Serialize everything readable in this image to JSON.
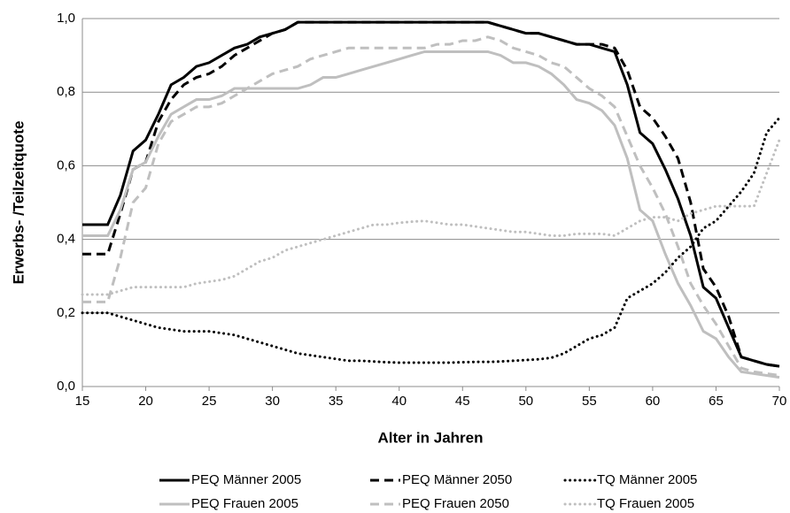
{
  "chart_data": {
    "type": "line",
    "y_label": "Erwerbs- /Teilzeitquote",
    "x_label": "Alter in Jahren",
    "x": [
      15,
      16,
      17,
      18,
      19,
      20,
      21,
      22,
      23,
      24,
      25,
      26,
      27,
      28,
      29,
      30,
      31,
      32,
      33,
      34,
      35,
      36,
      37,
      38,
      39,
      40,
      41,
      42,
      43,
      44,
      45,
      46,
      47,
      48,
      49,
      50,
      51,
      52,
      53,
      54,
      55,
      56,
      57,
      58,
      59,
      60,
      61,
      62,
      63,
      64,
      65,
      66,
      67,
      68,
      69,
      70
    ],
    "xlim": [
      15,
      70
    ],
    "xticks": [
      15,
      20,
      25,
      30,
      35,
      40,
      45,
      50,
      55,
      60,
      65,
      70
    ],
    "ylim": [
      0,
      1
    ],
    "yticks": [
      {
        "value": 0,
        "label": "0,0"
      },
      {
        "value": 0.2,
        "label": "0,2"
      },
      {
        "value": 0.4,
        "label": "0,4"
      },
      {
        "value": 0.6,
        "label": "0,6"
      },
      {
        "value": 0.8,
        "label": "0,8"
      },
      {
        "value": 1,
        "label": "1,0"
      }
    ],
    "grid": true,
    "legend": "bottom",
    "series": [
      {
        "name": "PEQ Männer 2005",
        "color": "#000000",
        "dash": "solid",
        "values": [
          0.44,
          0.44,
          0.44,
          0.52,
          0.64,
          0.67,
          0.74,
          0.82,
          0.84,
          0.87,
          0.88,
          0.9,
          0.92,
          0.93,
          0.95,
          0.96,
          0.97,
          0.99,
          0.99,
          0.99,
          0.99,
          0.99,
          0.99,
          0.99,
          0.99,
          0.99,
          0.99,
          0.99,
          0.99,
          0.99,
          0.99,
          0.99,
          0.99,
          0.98,
          0.97,
          0.96,
          0.96,
          0.95,
          0.94,
          0.93,
          0.93,
          0.92,
          0.91,
          0.82,
          0.69,
          0.66,
          0.59,
          0.51,
          0.41,
          0.27,
          0.24,
          0.16,
          0.08,
          0.07,
          0.06,
          0.055
        ]
      },
      {
        "name": "PEQ Männer 2050",
        "color": "#000000",
        "dash": "dash",
        "values": [
          0.36,
          0.36,
          0.36,
          0.47,
          0.59,
          0.61,
          0.72,
          0.78,
          0.82,
          0.84,
          0.85,
          0.87,
          0.9,
          0.92,
          0.94,
          0.96,
          0.97,
          0.99,
          0.99,
          0.99,
          0.99,
          0.99,
          0.99,
          0.99,
          0.99,
          0.99,
          0.99,
          0.99,
          0.99,
          0.99,
          0.99,
          0.99,
          0.99,
          0.98,
          0.97,
          0.96,
          0.96,
          0.95,
          0.94,
          0.93,
          0.93,
          0.93,
          0.92,
          0.86,
          0.76,
          0.73,
          0.68,
          0.62,
          0.5,
          0.32,
          0.27,
          0.19,
          0.08,
          0.07,
          0.06,
          0.055
        ]
      },
      {
        "name": "TQ Männer 2005",
        "color": "#000000",
        "dash": "dot",
        "values": [
          0.2,
          0.2,
          0.2,
          0.19,
          0.18,
          0.17,
          0.16,
          0.155,
          0.15,
          0.15,
          0.15,
          0.145,
          0.14,
          0.13,
          0.12,
          0.11,
          0.1,
          0.09,
          0.085,
          0.08,
          0.075,
          0.07,
          0.07,
          0.068,
          0.066,
          0.065,
          0.065,
          0.065,
          0.065,
          0.065,
          0.066,
          0.067,
          0.067,
          0.068,
          0.07,
          0.072,
          0.074,
          0.078,
          0.09,
          0.11,
          0.13,
          0.14,
          0.16,
          0.24,
          0.26,
          0.28,
          0.31,
          0.35,
          0.38,
          0.43,
          0.45,
          0.49,
          0.53,
          0.58,
          0.69,
          0.73
        ]
      },
      {
        "name": "PEQ Frauen 2005",
        "color": "#bfbfbf",
        "dash": "solid",
        "values": [
          0.41,
          0.41,
          0.41,
          0.48,
          0.59,
          0.61,
          0.68,
          0.74,
          0.76,
          0.78,
          0.78,
          0.79,
          0.81,
          0.81,
          0.81,
          0.81,
          0.81,
          0.81,
          0.82,
          0.84,
          0.84,
          0.85,
          0.86,
          0.87,
          0.88,
          0.89,
          0.9,
          0.91,
          0.91,
          0.91,
          0.91,
          0.91,
          0.91,
          0.9,
          0.88,
          0.88,
          0.87,
          0.85,
          0.82,
          0.78,
          0.77,
          0.75,
          0.71,
          0.62,
          0.48,
          0.45,
          0.36,
          0.28,
          0.22,
          0.15,
          0.13,
          0.08,
          0.04,
          0.035,
          0.03,
          0.025
        ]
      },
      {
        "name": "PEQ Frauen 2050",
        "color": "#bfbfbf",
        "dash": "dash",
        "values": [
          0.23,
          0.23,
          0.23,
          0.35,
          0.5,
          0.54,
          0.66,
          0.72,
          0.74,
          0.76,
          0.76,
          0.77,
          0.79,
          0.81,
          0.83,
          0.85,
          0.86,
          0.87,
          0.89,
          0.9,
          0.91,
          0.92,
          0.92,
          0.92,
          0.92,
          0.92,
          0.92,
          0.92,
          0.93,
          0.93,
          0.94,
          0.94,
          0.95,
          0.94,
          0.92,
          0.91,
          0.9,
          0.88,
          0.87,
          0.84,
          0.81,
          0.79,
          0.76,
          0.68,
          0.6,
          0.54,
          0.47,
          0.38,
          0.28,
          0.22,
          0.17,
          0.11,
          0.05,
          0.04,
          0.035,
          0.03
        ]
      },
      {
        "name": "TQ Frauen 2005",
        "color": "#bfbfbf",
        "dash": "dot",
        "values": [
          0.25,
          0.25,
          0.25,
          0.26,
          0.27,
          0.27,
          0.27,
          0.27,
          0.27,
          0.28,
          0.285,
          0.29,
          0.3,
          0.32,
          0.34,
          0.35,
          0.37,
          0.38,
          0.39,
          0.4,
          0.41,
          0.42,
          0.43,
          0.44,
          0.44,
          0.445,
          0.448,
          0.45,
          0.445,
          0.44,
          0.44,
          0.435,
          0.43,
          0.425,
          0.42,
          0.42,
          0.415,
          0.41,
          0.41,
          0.415,
          0.415,
          0.415,
          0.41,
          0.43,
          0.45,
          0.46,
          0.46,
          0.45,
          0.47,
          0.48,
          0.49,
          0.49,
          0.49,
          0.49,
          0.58,
          0.67
        ]
      }
    ]
  }
}
